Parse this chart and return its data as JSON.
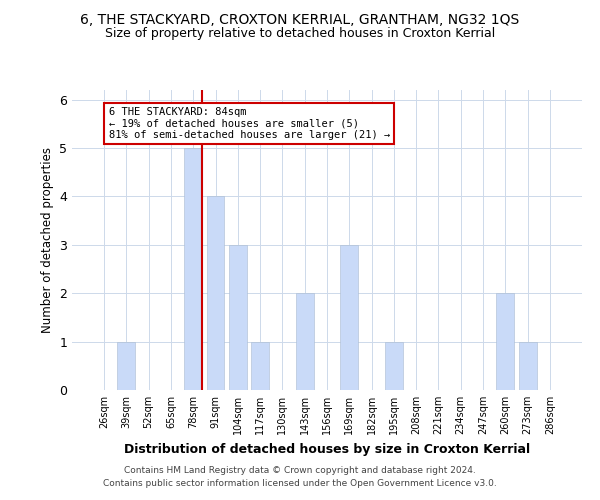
{
  "title_line1": "6, THE STACKYARD, CROXTON KERRIAL, GRANTHAM, NG32 1QS",
  "title_line2": "Size of property relative to detached houses in Croxton Kerrial",
  "xlabel": "Distribution of detached houses by size in Croxton Kerrial",
  "ylabel": "Number of detached properties",
  "categories": [
    "26sqm",
    "39sqm",
    "52sqm",
    "65sqm",
    "78sqm",
    "91sqm",
    "104sqm",
    "117sqm",
    "130sqm",
    "143sqm",
    "156sqm",
    "169sqm",
    "182sqm",
    "195sqm",
    "208sqm",
    "221sqm",
    "234sqm",
    "247sqm",
    "260sqm",
    "273sqm",
    "286sqm"
  ],
  "values": [
    0,
    1,
    0,
    0,
    5,
    4,
    3,
    1,
    0,
    2,
    0,
    3,
    0,
    1,
    0,
    0,
    0,
    0,
    2,
    1,
    0
  ],
  "bar_color": "#c9daf8",
  "highlight_bar_index": 4,
  "highlight_line_color": "#cc0000",
  "ylim": [
    0,
    6.2
  ],
  "yticks": [
    0,
    1,
    2,
    3,
    4,
    5,
    6
  ],
  "annotation_text": "6 THE STACKYARD: 84sqm\n← 19% of detached houses are smaller (5)\n81% of semi-detached houses are larger (21) →",
  "annotation_box_color": "#ffffff",
  "annotation_box_edge_color": "#cc0000",
  "grid_color": "#cdd9ea",
  "background_color": "#ffffff",
  "footer_line1": "Contains HM Land Registry data © Crown copyright and database right 2024.",
  "footer_line2": "Contains public sector information licensed under the Open Government Licence v3.0."
}
